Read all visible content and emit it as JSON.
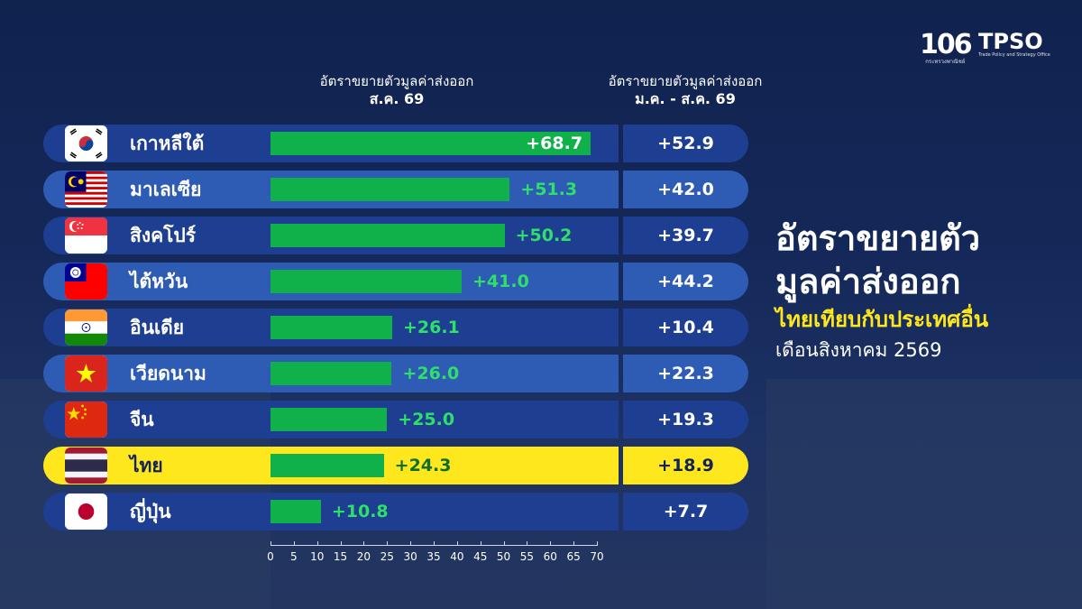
{
  "logos": {
    "anniversary": "106",
    "anniversary_sub": "กระทรวงพาณิชย์",
    "agency": "TPSO",
    "agency_sub": "Trade Policy and Strategy Office"
  },
  "column_headers": {
    "monthly_line1": "อัตราขยายตัวมูลค่าส่งออก",
    "monthly_line2": "ส.ค. 69",
    "ytd_line1": "อัตราขยายตัวมูลค่าส่งออก",
    "ytd_line2": "ม.ค. - ส.ค. 69"
  },
  "title": {
    "line1": "อัตราขยายตัว",
    "line2": "มูลค่าส่งออก",
    "line3": "ไทยเทียบกับประเทศอื่น",
    "line4": "เดือนสิงหาคม 2569"
  },
  "colors": {
    "bar": "#10b14b",
    "row_dark": "#1e3f91",
    "row_light": "#2e5bb4",
    "highlight": "#fee71c"
  },
  "chart_data": {
    "type": "bar",
    "orientation": "horizontal",
    "categories": [
      "เกาหลีใต้",
      "มาเลเซีย",
      "สิงคโปร์",
      "ไต้หวัน",
      "อินเดีย",
      "เวียดนาม",
      "จีน",
      "ไทย",
      "ญี่ปุ่น"
    ],
    "flags": [
      "south-korea-flag",
      "malaysia-flag",
      "singapore-flag",
      "taiwan-flag",
      "india-flag",
      "vietnam-flag",
      "china-flag",
      "thailand-flag",
      "japan-flag"
    ],
    "values": [
      68.7,
      51.3,
      50.2,
      41.0,
      26.1,
      26.0,
      25.0,
      24.3,
      10.8
    ],
    "value_labels": [
      "+68.7",
      "+51.3",
      "+50.2",
      "+41.0",
      "+26.1",
      "+26.0",
      "+25.0",
      "+24.3",
      "+10.8"
    ],
    "ytd_values": [
      52.9,
      42.0,
      39.7,
      44.2,
      10.4,
      22.3,
      19.3,
      18.9,
      7.7
    ],
    "ytd_labels": [
      "+52.9",
      "+42.0",
      "+39.7",
      "+44.2",
      "+10.4",
      "+22.3",
      "+19.3",
      "+18.9",
      "+7.7"
    ],
    "highlight_category": "ไทย",
    "xlim": [
      0,
      70
    ],
    "xticks": [
      0,
      5,
      10,
      15,
      20,
      25,
      30,
      35,
      40,
      45,
      50,
      55,
      60,
      65,
      70
    ],
    "grid": false
  }
}
